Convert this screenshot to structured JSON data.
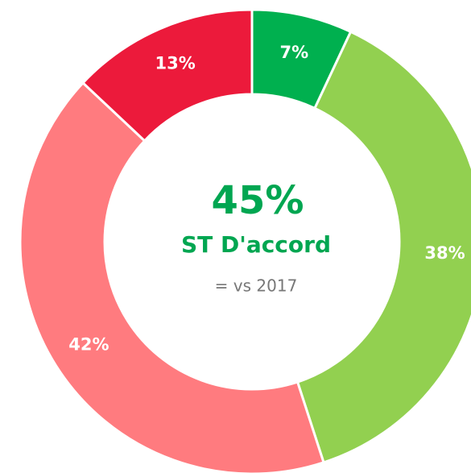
{
  "chart_data": {
    "type": "donut",
    "values": [
      7,
      38,
      42,
      13
    ],
    "value_labels": [
      "7%",
      "38%",
      "42%",
      "13%"
    ],
    "colors": [
      "#00b04f",
      "#92d050",
      "#ff7b7f",
      "#ec1a3b"
    ],
    "annotations": [
      "45%",
      "ST D'accord",
      "= vs 2017"
    ]
  }
}
